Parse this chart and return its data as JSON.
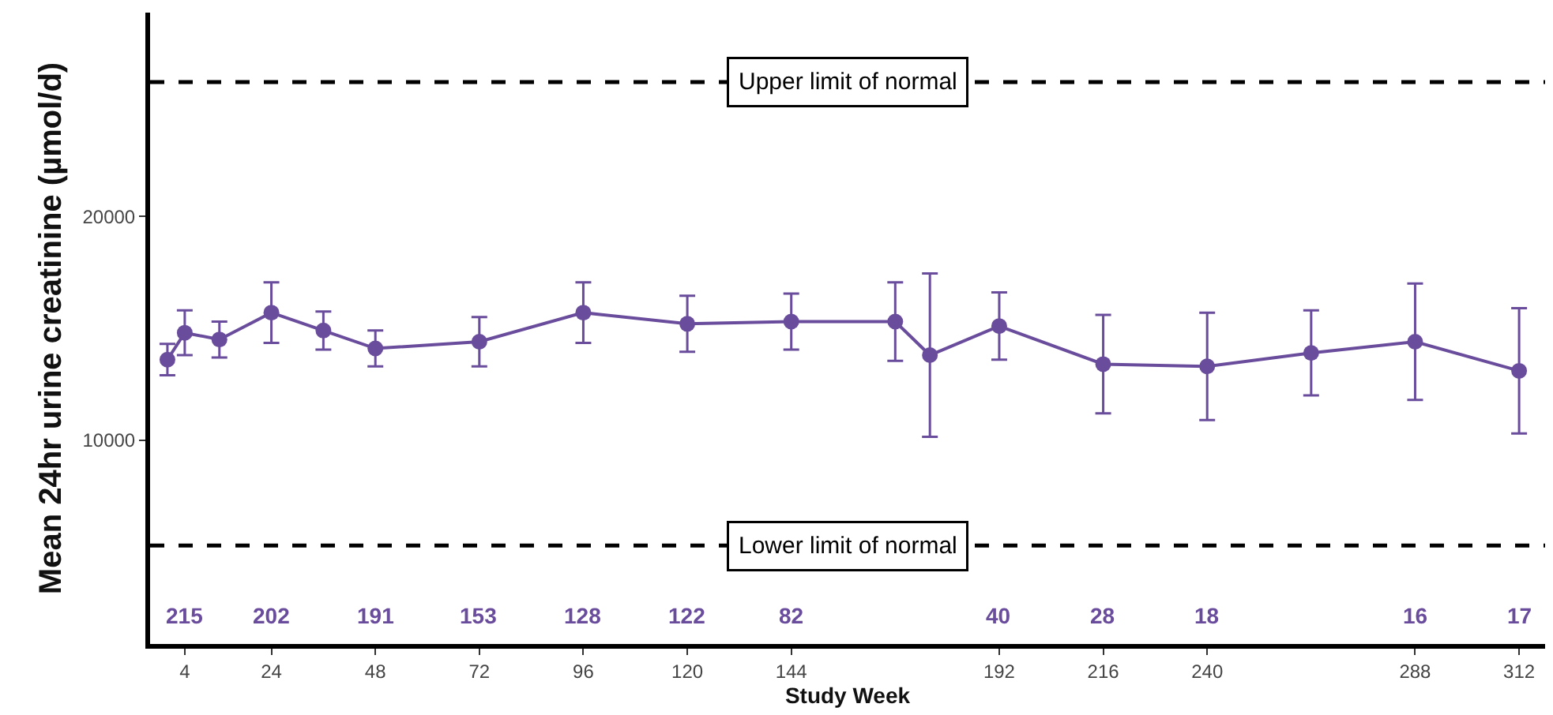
{
  "chart_data": {
    "type": "line",
    "xlabel": "Study Week",
    "ylabel": "Mean 24hr urine creatinine (µmol/d)",
    "x": [
      0,
      4,
      12,
      24,
      36,
      48,
      72,
      96,
      120,
      144,
      168,
      176,
      192,
      216,
      240,
      264,
      288,
      312
    ],
    "series": [
      {
        "color": "#6a4c9c",
        "values": [
          13600,
          14800,
          14500,
          15700,
          14900,
          14100,
          14400,
          15700,
          15200,
          15300,
          15300,
          13800,
          15100,
          13400,
          13300,
          13900,
          14400,
          13100
        ],
        "errors": [
          700,
          1000,
          800,
          1350,
          850,
          800,
          1100,
          1350,
          1250,
          1250,
          1750,
          3650,
          1500,
          2200,
          2400,
          1900,
          2600,
          2800
        ]
      }
    ],
    "xlim": [
      -4,
      318
    ],
    "ylim": [
      900,
      29100
    ],
    "xticks": [
      4,
      24,
      48,
      72,
      96,
      120,
      144,
      192,
      216,
      240,
      288,
      312
    ],
    "yticks": [
      10000,
      20000
    ],
    "ref_lines": [
      {
        "axis": "y",
        "value": 26000,
        "label": "Upper limit of normal",
        "color": "#000000",
        "line_style": "dashed"
      },
      {
        "axis": "y",
        "value": 5300,
        "label": "Lower limit of normal",
        "color": "#000000",
        "line_style": "dashed"
      }
    ],
    "annotations": [
      "215",
      "202",
      "191",
      "153",
      "128",
      "122",
      "82",
      "40",
      "28",
      "18",
      "16",
      "17"
    ],
    "grid": false,
    "marker": "circle",
    "line_style": "solid"
  }
}
